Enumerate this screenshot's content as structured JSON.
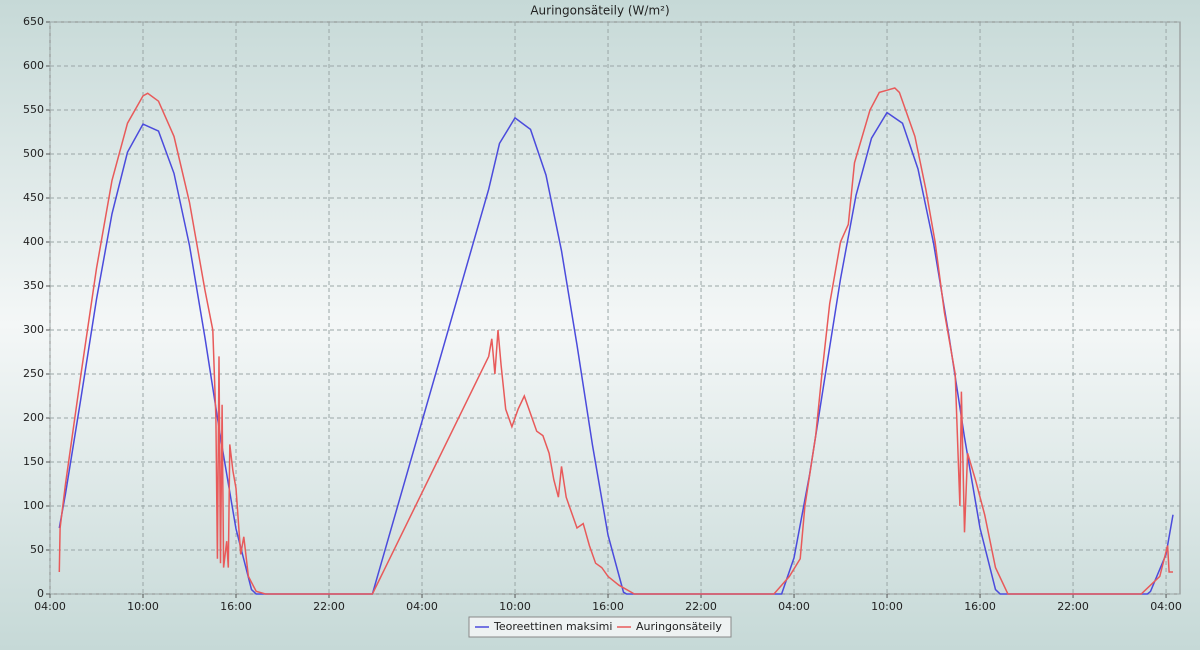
{
  "chart_data": {
    "type": "line",
    "title": "Auringonsäteily (W/m²)",
    "xlim": [
      4,
      76.9
    ],
    "ylim": [
      0,
      650
    ],
    "yticks": [
      0,
      50,
      100,
      150,
      200,
      250,
      300,
      350,
      400,
      450,
      500,
      550,
      600,
      650
    ],
    "xticks": [
      {
        "value": 4,
        "label": "04:00"
      },
      {
        "value": 10,
        "label": "10:00"
      },
      {
        "value": 16,
        "label": "16:00"
      },
      {
        "value": 22,
        "label": "22:00"
      },
      {
        "value": 28,
        "label": "04:00"
      },
      {
        "value": 34,
        "label": "10:00"
      },
      {
        "value": 40,
        "label": "16:00"
      },
      {
        "value": 46,
        "label": "22:00"
      },
      {
        "value": 52,
        "label": "04:00"
      },
      {
        "value": 58,
        "label": "10:00"
      },
      {
        "value": 64,
        "label": "16:00"
      },
      {
        "value": 70,
        "label": "22:00"
      },
      {
        "value": 76,
        "label": "04:00"
      }
    ],
    "grid": true,
    "series": [
      {
        "name": "Teoreettinen maksimi",
        "color": "#4b4bdc",
        "x": [
          4.6,
          5,
          6,
          7,
          8,
          9,
          10,
          11,
          12,
          13,
          14,
          15,
          16,
          17,
          17.3,
          24.8,
          32.3,
          33,
          34,
          35,
          36,
          37,
          38,
          39,
          40,
          41,
          41.2,
          51.2,
          52,
          53,
          54,
          55,
          56,
          57,
          58,
          59,
          60,
          61,
          62,
          63,
          64,
          65,
          65.3,
          74.8,
          75,
          76,
          76.45
        ],
        "values": [
          75,
          114,
          223,
          335,
          432,
          502,
          534,
          526,
          478,
          396,
          291,
          178,
          74,
          5,
          0,
          0,
          460,
          512,
          541,
          528,
          476,
          390,
          283,
          169,
          67,
          2,
          0,
          0,
          41,
          135,
          247,
          358,
          453,
          518,
          547,
          535,
          483,
          399,
          293,
          178,
          75,
          5,
          0,
          0,
          3,
          45,
          90
        ]
      },
      {
        "name": "Auringonsäteily",
        "color": "#e85a5a",
        "x": [
          4.6,
          4.65,
          5,
          6,
          7,
          8,
          9,
          10,
          10.3,
          11,
          12,
          13,
          14,
          14.5,
          14.7,
          14.8,
          14.9,
          15.0,
          15.1,
          15.2,
          15.4,
          15.5,
          15.6,
          15.8,
          16.0,
          16.3,
          16.5,
          16.8,
          17.3,
          17.9,
          24.8,
          32.3,
          32.5,
          32.7,
          32.9,
          33.1,
          33.4,
          33.8,
          34.2,
          34.6,
          35.0,
          35.4,
          35.8,
          36.2,
          36.5,
          36.8,
          37.0,
          37.3,
          37.6,
          38.0,
          38.4,
          38.8,
          39.2,
          39.6,
          40.0,
          40.7,
          41.7,
          50.7,
          51.7,
          52.4,
          52.7,
          53.4,
          53.8,
          54.3,
          55.0,
          55.5,
          55.9,
          56.9,
          57.5,
          58.5,
          58.8,
          59.8,
          60.5,
          61.1,
          61.7,
          62.4,
          62.7,
          62.8,
          63.0,
          63.2,
          63.7,
          64.3,
          65.0,
          65.8,
          74.4,
          75,
          75.6,
          76.1,
          76.2,
          76.45
        ],
        "values": [
          25,
          75,
          125,
          250,
          370,
          470,
          535,
          566,
          569,
          560,
          520,
          445,
          345,
          300,
          200,
          40,
          270,
          35,
          215,
          30,
          60,
          30,
          170,
          140,
          120,
          45,
          65,
          20,
          3,
          0,
          0,
          270,
          290,
          250,
          300,
          260,
          210,
          190,
          210,
          225,
          205,
          185,
          180,
          160,
          130,
          110,
          145,
          110,
          95,
          75,
          80,
          55,
          35,
          30,
          20,
          10,
          0,
          0,
          20,
          40,
          100,
          180,
          250,
          330,
          400,
          420,
          490,
          550,
          570,
          575,
          570,
          520,
          460,
          400,
          320,
          250,
          100,
          230,
          70,
          160,
          130,
          90,
          30,
          0,
          0,
          10,
          20,
          55,
          25,
          25
        ]
      }
    ]
  }
}
